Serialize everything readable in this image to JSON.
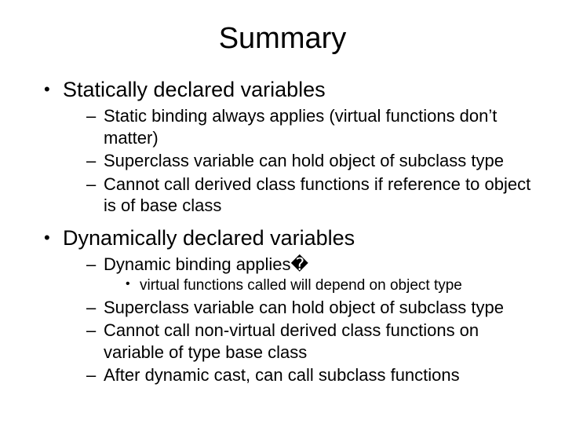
{
  "title": "Summary",
  "sections": [
    {
      "heading": "Statically declared variables",
      "items": [
        {
          "text": "Static binding always applies (virtual functions don’t matter)"
        },
        {
          "text": "Superclass variable can hold object of subclass type"
        },
        {
          "text": "Cannot call derived class functions if reference to object is of base class"
        }
      ]
    },
    {
      "heading": "Dynamically declared variables",
      "items": [
        {
          "text": "Dynamic binding applies�",
          "subitems": [
            {
              "text": "virtual functions called will depend on object type"
            }
          ]
        },
        {
          "text": "Superclass variable can hold object of subclass type"
        },
        {
          "text": "Cannot call non-virtual derived class functions on variable of type base class"
        },
        {
          "text": "After dynamic cast, can call subclass functions"
        }
      ]
    }
  ],
  "style": {
    "background_color": "#ffffff",
    "text_color": "#000000",
    "font_family": "Arial",
    "title_fontsize": 38,
    "level1_fontsize": 27,
    "level2_fontsize": 22,
    "level3_fontsize": 19,
    "bullet_level1": "•",
    "bullet_level2": "–",
    "bullet_level3": "•"
  }
}
